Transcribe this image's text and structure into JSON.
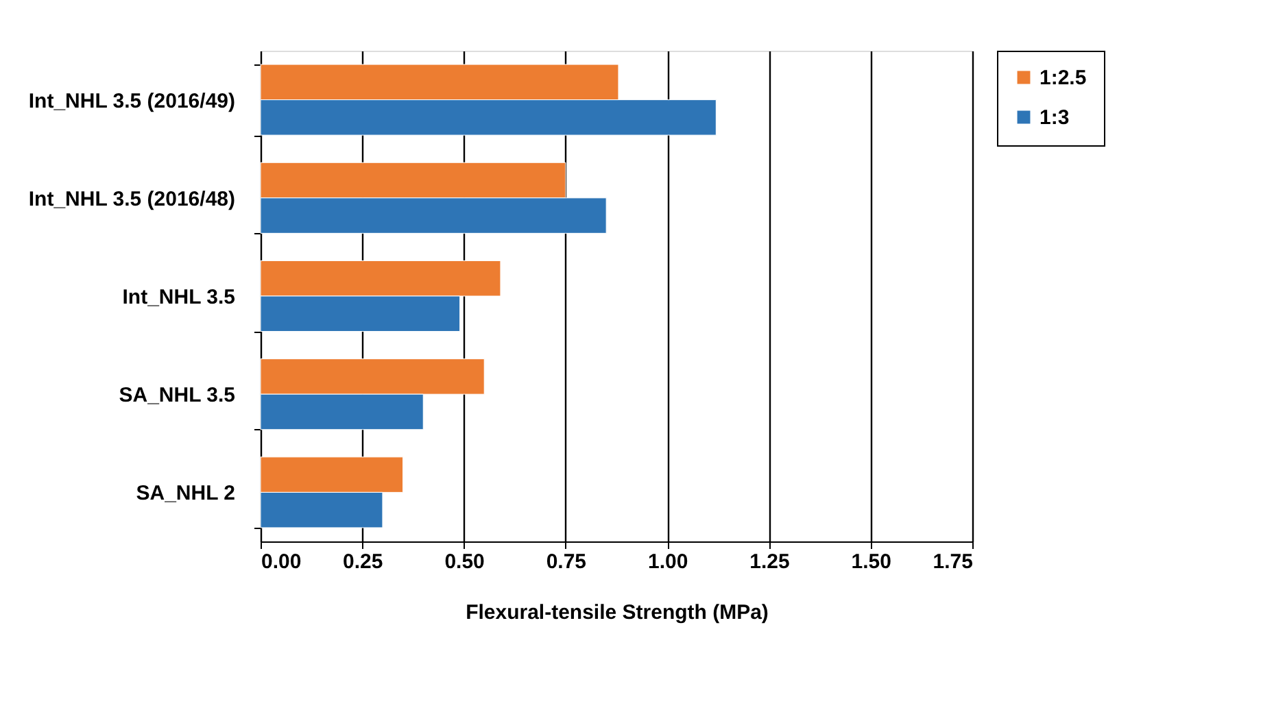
{
  "chart_data": {
    "type": "bar",
    "orientation": "horizontal",
    "xlabel": "Flexural-tensile  Strength (MPa)",
    "categories": [
      "Int_NHL 3.5 (2016/49)",
      "Int_NHL 3.5 (2016/48)",
      "Int_NHL 3.5",
      "SA_NHL 3.5",
      "SA_NHL 2"
    ],
    "series": [
      {
        "name": "1:2.5",
        "color": "#ed7d31",
        "values": [
          0.88,
          0.75,
          0.59,
          0.55,
          0.35
        ]
      },
      {
        "name": "1:3",
        "color": "#2e75b6",
        "values": [
          1.12,
          0.85,
          0.49,
          0.4,
          0.3
        ]
      }
    ],
    "xlim": [
      0,
      1.75
    ],
    "xticks": [
      {
        "value": 0,
        "label": "0.00"
      },
      0.25,
      {
        "value": 0.5,
        "label": "0.50"
      },
      0.75,
      {
        "value": 1,
        "label": "1.00"
      },
      1.25,
      {
        "value": 1.5,
        "label": "1.50"
      },
      1.75
    ],
    "grid": "x",
    "legend": "right"
  }
}
